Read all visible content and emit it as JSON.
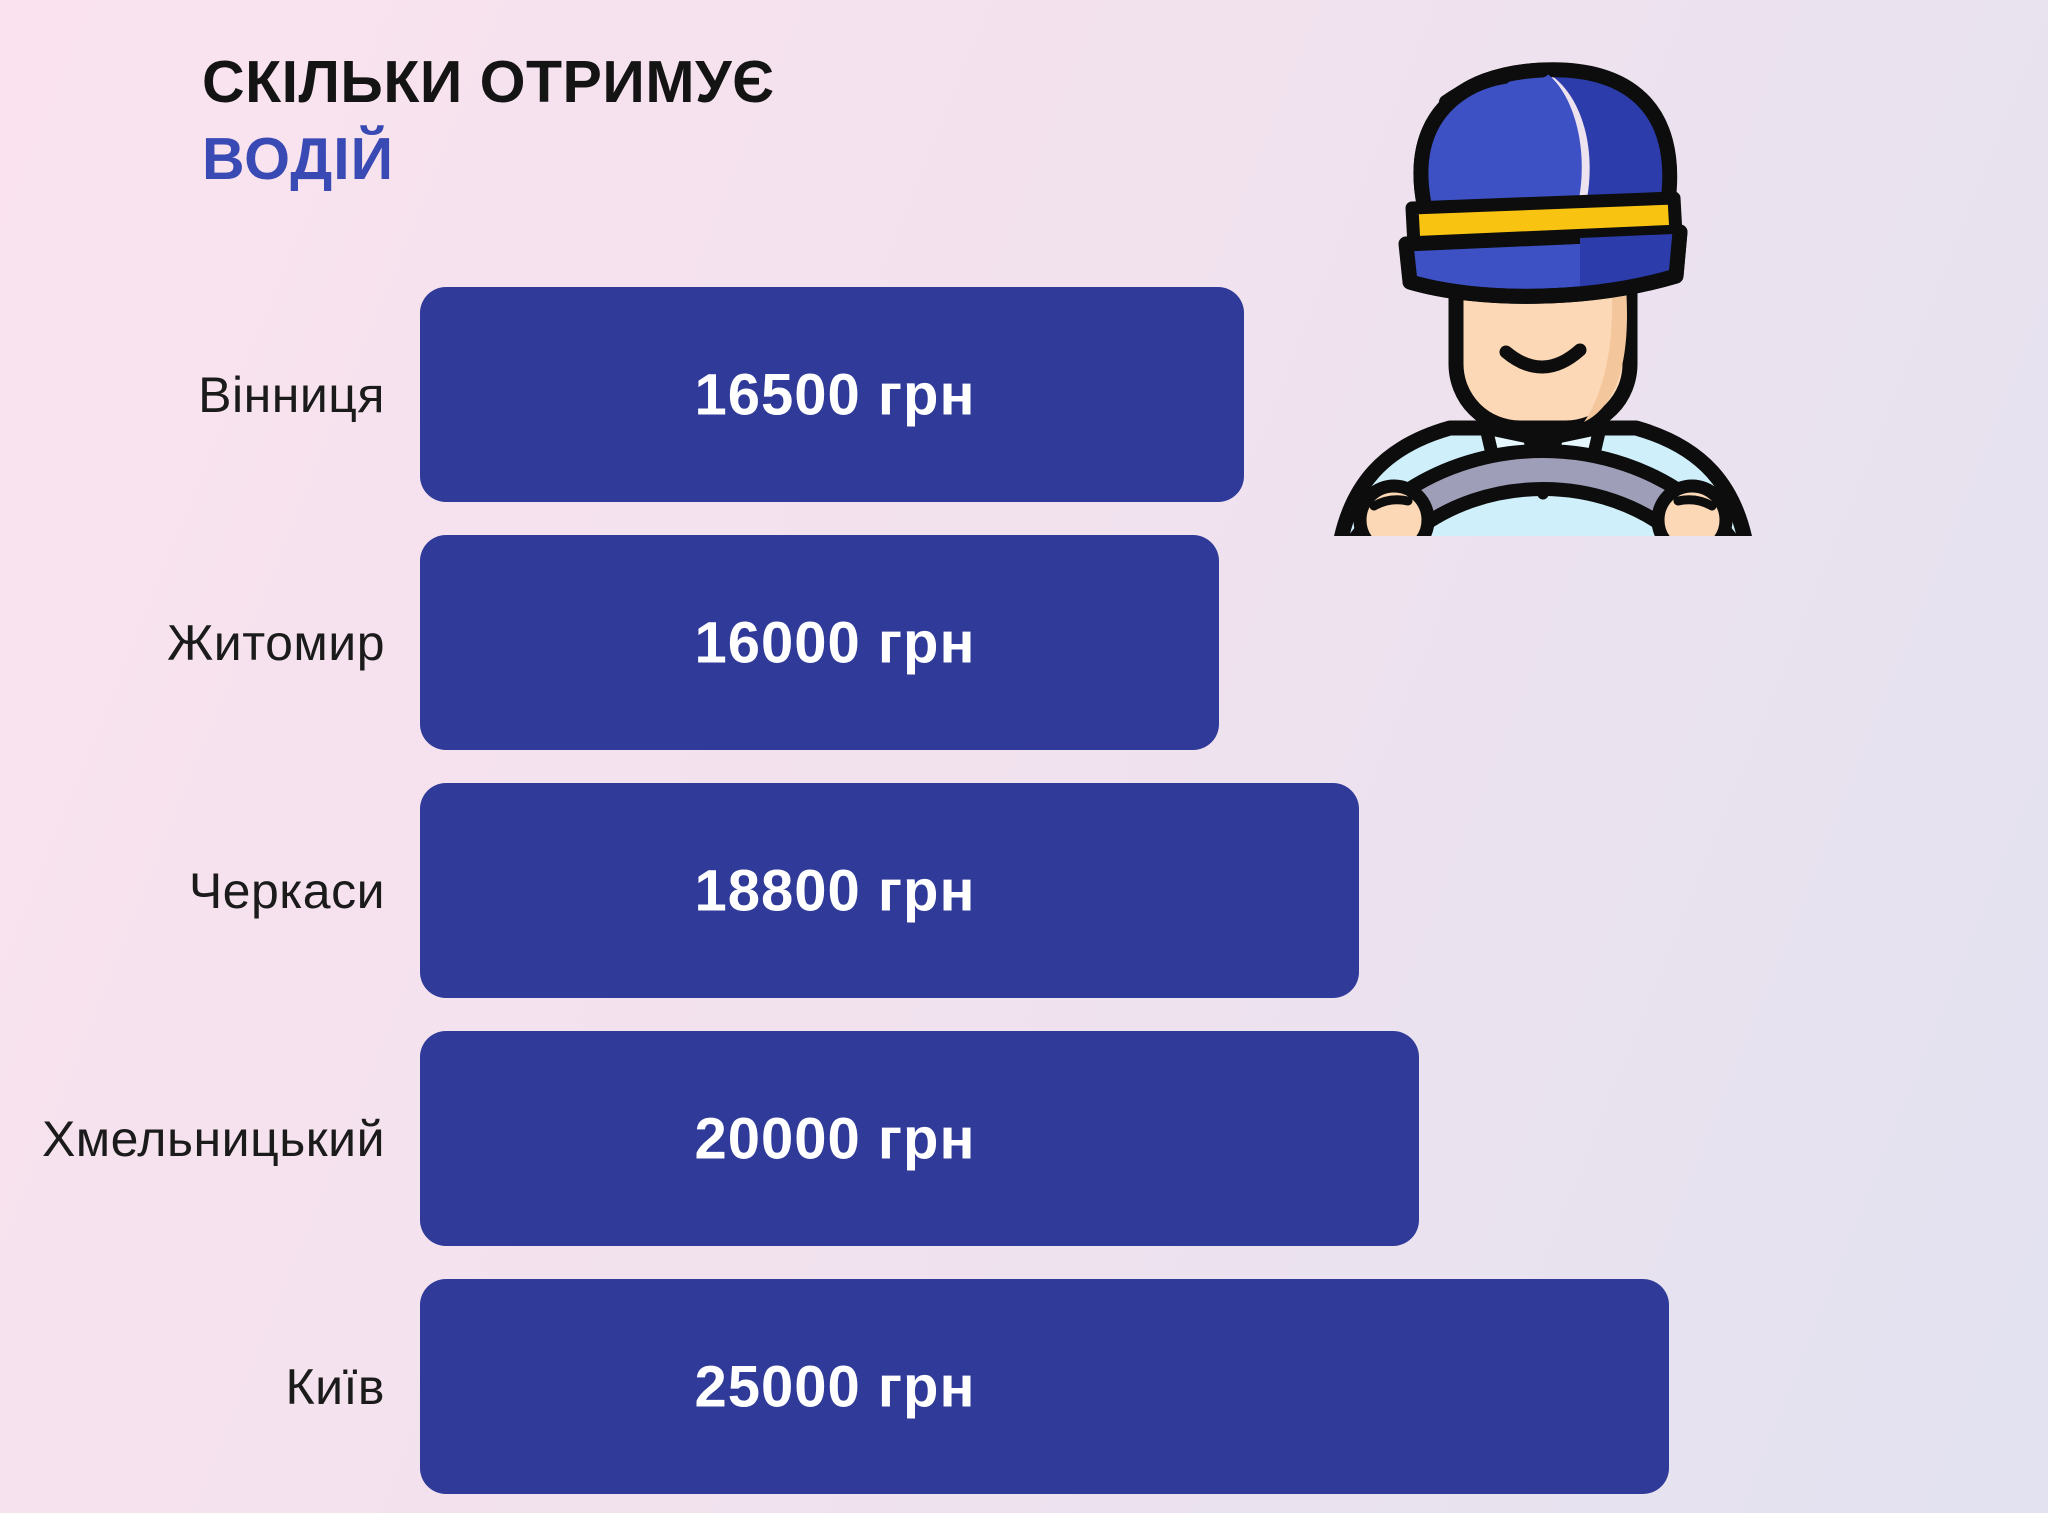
{
  "header": {
    "title_line1": "СКІЛЬКИ ОТРИМУЄ",
    "title_line2": "ВОДІЙ"
  },
  "chart_data": {
    "type": "bar",
    "orientation": "horizontal",
    "title": "Скільки отримує водій",
    "categories": [
      "Вінниця",
      "Житомир",
      "Черкаси",
      "Хмельницький",
      "Київ"
    ],
    "values": [
      16500,
      16000,
      18800,
      20000,
      25000
    ],
    "unit": "грн",
    "value_labels": [
      "16500 грн",
      "16000 грн",
      "18800 грн",
      "20000 грн",
      "25000 грн"
    ],
    "xlim": [
      0,
      25000
    ],
    "grid": false,
    "legend": "none",
    "bar_color": "#2f3a99",
    "value_text_color": "#ffffff",
    "category_text_color": "#1b1b1b"
  },
  "icon": {
    "name": "driver-icon",
    "cap_color": "#3d51c5",
    "cap_shadow_color": "#2c3cab",
    "band_color": "#f9c411",
    "skin_color": "#fcd8b6",
    "skin_shadow_color": "#f3c69c",
    "shirt_color": "#cfeffb",
    "collar_color": "#e6f8fe",
    "wheel_color": "#9e9eb9",
    "outline_color": "#0d0d0d"
  },
  "colors": {
    "background_start": "#fae3ee",
    "background_end": "#e2e2f0",
    "title_main": "#141414",
    "title_accent": "#3a4ab5"
  }
}
